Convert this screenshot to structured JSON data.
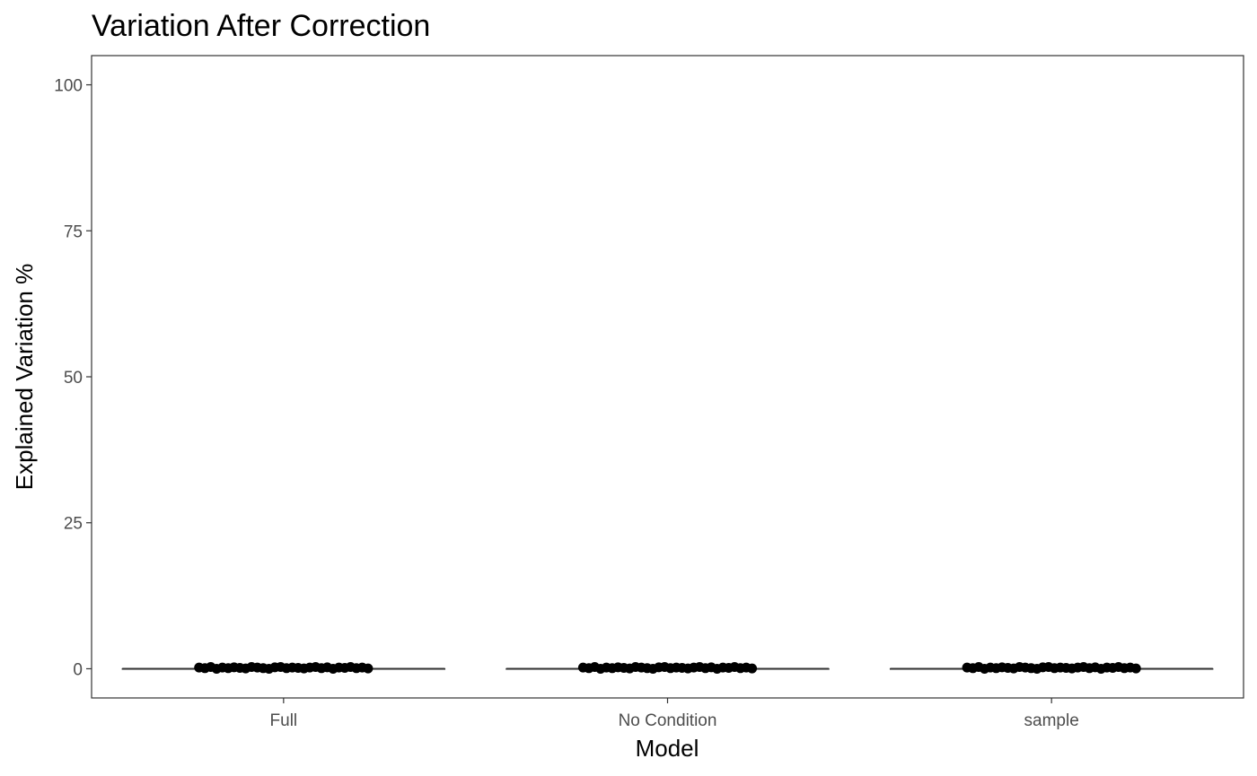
{
  "chart_data": {
    "type": "boxplot",
    "title": "Variation After Correction",
    "xlabel": "Model",
    "ylabel": "Explained Variation %",
    "categories": [
      "Full",
      "No Condition",
      "sample"
    ],
    "ylim": [
      -5,
      105
    ],
    "yticks": [
      0,
      25,
      50,
      75,
      100
    ],
    "grid": false,
    "series": [
      {
        "category": "Full",
        "min": 0,
        "q1": 0,
        "median": 0,
        "q3": 0,
        "max": 0,
        "points": [
          0.2,
          0.1,
          0.3,
          0.0,
          0.2,
          0.1,
          0.25,
          0.15,
          0.05,
          0.3,
          0.2,
          0.1,
          0.0,
          0.25,
          0.3,
          0.1,
          0.2,
          0.15,
          0.05,
          0.2,
          0.3,
          0.1,
          0.25,
          0.0,
          0.2,
          0.15,
          0.3,
          0.1,
          0.2,
          0.05
        ]
      },
      {
        "category": "No Condition",
        "min": 0,
        "q1": 0,
        "median": 0,
        "q3": 0,
        "max": 0,
        "points": [
          0.2,
          0.1,
          0.3,
          0.0,
          0.2,
          0.1,
          0.25,
          0.15,
          0.05,
          0.3,
          0.2,
          0.1,
          0.0,
          0.25,
          0.3,
          0.1,
          0.2,
          0.15,
          0.05,
          0.2,
          0.3,
          0.1,
          0.25,
          0.0,
          0.2,
          0.15,
          0.3,
          0.1,
          0.2,
          0.05
        ]
      },
      {
        "category": "sample",
        "min": 0,
        "q1": 0,
        "median": 0,
        "q3": 0,
        "max": 0,
        "points": [
          0.2,
          0.1,
          0.3,
          0.0,
          0.2,
          0.1,
          0.25,
          0.15,
          0.05,
          0.3,
          0.2,
          0.1,
          0.0,
          0.25,
          0.3,
          0.1,
          0.2,
          0.15,
          0.05,
          0.2,
          0.3,
          0.1,
          0.25,
          0.0,
          0.2,
          0.15,
          0.3,
          0.1,
          0.2,
          0.05
        ]
      }
    ],
    "colors": {
      "box": "#333333",
      "points": "#000000",
      "panel_border": "#333333",
      "tick_text": "#4d4d4d"
    }
  }
}
